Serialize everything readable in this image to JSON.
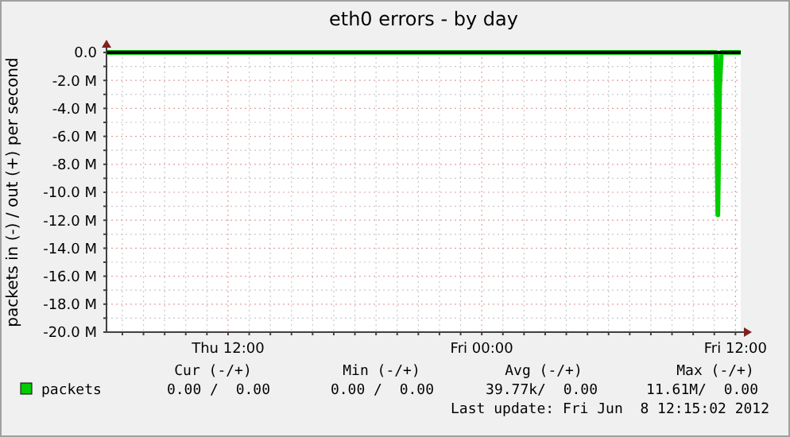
{
  "chart_data": {
    "type": "line",
    "title": "eth0 errors - by day",
    "ylabel": "packets in (-) / out (+) per second",
    "x": [
      "2012-06-07T06:15",
      "2012-06-08T11:05",
      "2012-06-08T11:10",
      "2012-06-08T11:15",
      "2012-06-08T11:20",
      "2012-06-08T12:15"
    ],
    "series": [
      {
        "name": "packets",
        "color": "#00cc00",
        "values": [
          0,
          0,
          -11.61,
          -2.6,
          0,
          0
        ]
      }
    ],
    "xlim": [
      "2012-06-07T06:15",
      "2012-06-08T12:15"
    ],
    "xticks": [
      {
        "value": "2012-06-07T07:00",
        "label": null
      },
      {
        "value": "2012-06-07T08:00",
        "label": null
      },
      {
        "value": "2012-06-07T09:00",
        "label": null
      },
      {
        "value": "2012-06-07T10:00",
        "label": null
      },
      {
        "value": "2012-06-07T11:00",
        "label": null
      },
      {
        "value": "2012-06-07T12:00",
        "label": "Thu 12:00"
      },
      {
        "value": "2012-06-07T13:00",
        "label": null
      },
      {
        "value": "2012-06-07T14:00",
        "label": null
      },
      {
        "value": "2012-06-07T15:00",
        "label": null
      },
      {
        "value": "2012-06-07T16:00",
        "label": null
      },
      {
        "value": "2012-06-07T17:00",
        "label": null
      },
      {
        "value": "2012-06-07T18:00",
        "label": null
      },
      {
        "value": "2012-06-07T19:00",
        "label": null
      },
      {
        "value": "2012-06-07T20:00",
        "label": null
      },
      {
        "value": "2012-06-07T21:00",
        "label": null
      },
      {
        "value": "2012-06-07T22:00",
        "label": null
      },
      {
        "value": "2012-06-07T23:00",
        "label": null
      },
      {
        "value": "2012-06-08T00:00",
        "label": "Fri 00:00"
      },
      {
        "value": "2012-06-08T01:00",
        "label": null
      },
      {
        "value": "2012-06-08T02:00",
        "label": null
      },
      {
        "value": "2012-06-08T03:00",
        "label": null
      },
      {
        "value": "2012-06-08T04:00",
        "label": null
      },
      {
        "value": "2012-06-08T05:00",
        "label": null
      },
      {
        "value": "2012-06-08T06:00",
        "label": null
      },
      {
        "value": "2012-06-08T07:00",
        "label": null
      },
      {
        "value": "2012-06-08T08:00",
        "label": null
      },
      {
        "value": "2012-06-08T09:00",
        "label": null
      },
      {
        "value": "2012-06-08T10:00",
        "label": null
      },
      {
        "value": "2012-06-08T11:00",
        "label": null
      },
      {
        "value": "2012-06-08T12:00",
        "label": "Fri 12:00"
      }
    ],
    "ylim": [
      -20,
      0
    ],
    "yticks": [
      {
        "value": -20,
        "label": "-20.0 M"
      },
      {
        "value": -19,
        "label": null
      },
      {
        "value": -18,
        "label": "-18.0 M"
      },
      {
        "value": -17,
        "label": null
      },
      {
        "value": -16,
        "label": "-16.0 M"
      },
      {
        "value": -15,
        "label": null
      },
      {
        "value": -14,
        "label": "-14.0 M"
      },
      {
        "value": -13,
        "label": null
      },
      {
        "value": -12,
        "label": "-12.0 M"
      },
      {
        "value": -11,
        "label": null
      },
      {
        "value": -10,
        "label": "-10.0 M"
      },
      {
        "value": -9,
        "label": null
      },
      {
        "value": -8,
        "label": "-8.0 M"
      },
      {
        "value": -7,
        "label": null
      },
      {
        "value": -6,
        "label": "-6.0 M"
      },
      {
        "value": -5,
        "label": null
      },
      {
        "value": -4,
        "label": "-4.0 M"
      },
      {
        "value": -3,
        "label": null
      },
      {
        "value": -2,
        "label": "-2.0 M"
      },
      {
        "value": -1,
        "label": null
      },
      {
        "value": 0,
        "label": "0.0"
      }
    ],
    "grid": true,
    "legend": "bottom",
    "marker": "none",
    "line_style": "solid",
    "ref_lines": [
      {
        "axis": "y",
        "value": 0,
        "color": "#000000"
      }
    ],
    "annotations": [
      "Cur (-/+)",
      "Min (-/+)",
      "Avg (-/+)",
      "Max (-/+)",
      "0.00 /  0.00",
      "0.00 /  0.00",
      "39.77k/  0.00",
      "11.61M/  0.00",
      "Last update: Fri Jun  8 12:15:02 2012"
    ]
  }
}
